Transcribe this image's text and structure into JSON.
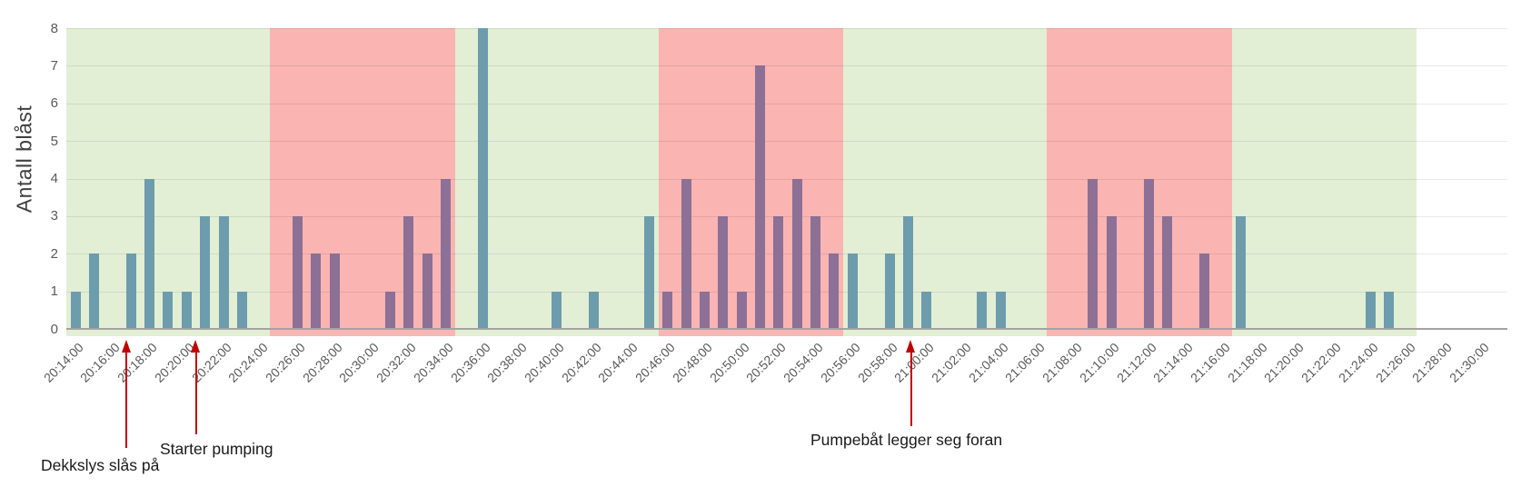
{
  "chart_data": {
    "type": "bar",
    "title": "",
    "ylabel": "Antall blåst",
    "xlabel": "",
    "ylim": [
      0,
      8
    ],
    "y_ticks": [
      0,
      1,
      2,
      3,
      4,
      5,
      6,
      7,
      8
    ],
    "grid": "horizontal",
    "x_start": "20:14:00",
    "x_end": "21:30:00",
    "x_interval_minutes": 1,
    "x_tick_every_minutes": 2,
    "categories": [
      "20:14:00",
      "20:15:00",
      "20:16:00",
      "20:17:00",
      "20:18:00",
      "20:19:00",
      "20:20:00",
      "20:21:00",
      "20:22:00",
      "20:23:00",
      "20:24:00",
      "20:25:00",
      "20:26:00",
      "20:27:00",
      "20:28:00",
      "20:29:00",
      "20:30:00",
      "20:31:00",
      "20:32:00",
      "20:33:00",
      "20:34:00",
      "20:35:00",
      "20:36:00",
      "20:37:00",
      "20:38:00",
      "20:39:00",
      "20:40:00",
      "20:41:00",
      "20:42:00",
      "20:43:00",
      "20:44:00",
      "20:45:00",
      "20:46:00",
      "20:47:00",
      "20:48:00",
      "20:49:00",
      "20:50:00",
      "20:51:00",
      "20:52:00",
      "20:53:00",
      "20:54:00",
      "20:55:00",
      "20:56:00",
      "20:57:00",
      "20:58:00",
      "20:59:00",
      "21:00:00",
      "21:01:00",
      "21:02:00",
      "21:03:00",
      "21:04:00",
      "21:05:00",
      "21:06:00",
      "21:07:00",
      "21:08:00",
      "21:09:00",
      "21:10:00",
      "21:11:00",
      "21:12:00",
      "21:13:00",
      "21:14:00",
      "21:15:00",
      "21:16:00",
      "21:17:00",
      "21:18:00",
      "21:19:00",
      "21:20:00",
      "21:21:00",
      "21:22:00",
      "21:23:00",
      "21:24:00",
      "21:25:00",
      "21:26:00",
      "21:27:00",
      "21:28:00",
      "21:29:00",
      "21:30:00"
    ],
    "values": [
      1,
      2,
      0,
      2,
      4,
      1,
      1,
      3,
      3,
      1,
      0,
      0,
      3,
      2,
      2,
      0,
      0,
      1,
      3,
      2,
      4,
      0,
      8,
      0,
      0,
      0,
      1,
      0,
      1,
      0,
      0,
      3,
      1,
      4,
      1,
      3,
      1,
      7,
      3,
      4,
      3,
      2,
      2,
      0,
      2,
      3,
      1,
      0,
      0,
      1,
      1,
      0,
      0,
      0,
      0,
      4,
      3,
      0,
      4,
      3,
      0,
      2,
      0,
      3,
      0,
      0,
      0,
      0,
      0,
      0,
      1,
      1,
      0,
      0,
      0,
      0,
      0
    ],
    "regions": [
      {
        "color_name": "green",
        "start": "20:14:00",
        "end": "21:27:00"
      },
      {
        "color_name": "red",
        "start": "20:25:00",
        "end": "20:35:00"
      },
      {
        "color_name": "red",
        "start": "20:46:00",
        "end": "20:56:00"
      },
      {
        "color_name": "red",
        "start": "21:07:00",
        "end": "21:17:00"
      }
    ],
    "annotations": [
      {
        "text": "Dekkslys slås på",
        "time": "20:16:45"
      },
      {
        "text": "Starter pumping",
        "time": "20:20:30"
      },
      {
        "text": "Pumpebåt legger seg foran",
        "time": "20:59:10"
      }
    ],
    "colors": {
      "bar_normal": "#6d9cac",
      "bar_in_red_zone": "#8c7095",
      "zone_green": "#e2efd5",
      "zone_red": "#fab4b2",
      "axis_text": "#595959",
      "ylabel_text": "#404040",
      "axis_line": "#a3a3a3",
      "annotation_arrow": "#c00000",
      "annotation_text": "#1a1a1a"
    }
  }
}
